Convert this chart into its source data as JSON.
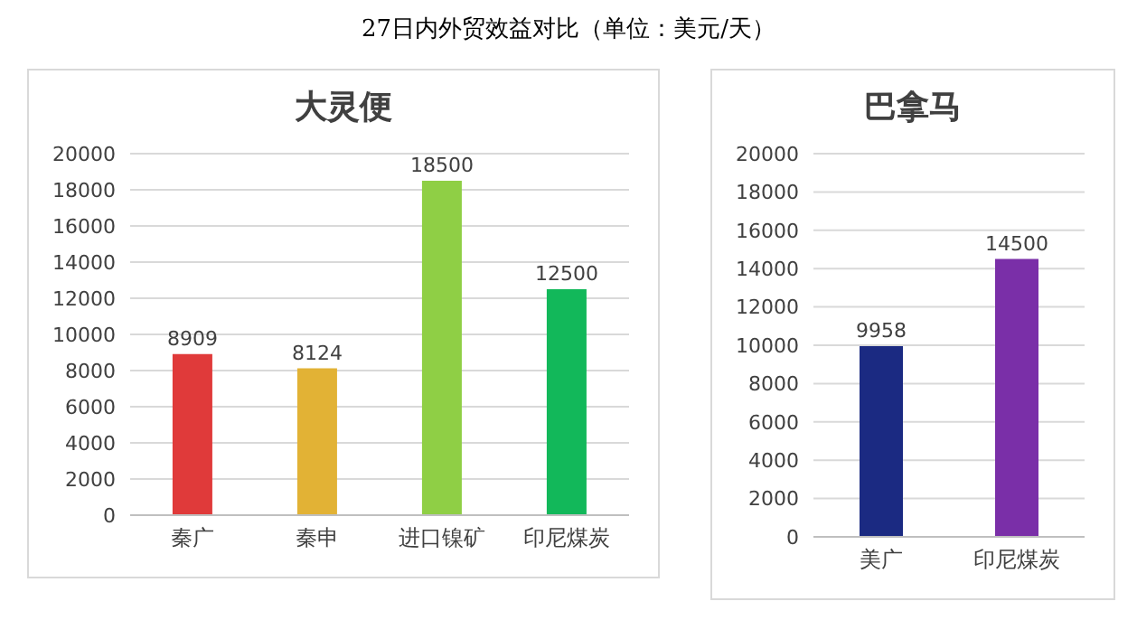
{
  "chart_data": [
    {
      "type": "bar",
      "title": "大灵便",
      "annotations": [
        "27日内外贸效益对比（单位：美元/天）"
      ],
      "categories": [
        "秦广",
        "秦申",
        "进口镍矿",
        "印尼煤炭"
      ],
      "values": [
        8909,
        8124,
        18500,
        12500
      ],
      "colors": [
        "#e03a3a",
        "#e2b235",
        "#8fcf45",
        "#12b85a"
      ],
      "ylim": [
        0,
        20000
      ],
      "yticks": [
        0,
        2000,
        4000,
        6000,
        8000,
        10000,
        12000,
        14000,
        16000,
        18000,
        20000
      ],
      "grid": "y",
      "data_labels": true
    },
    {
      "type": "bar",
      "title": "巴拿马",
      "categories": [
        "美广",
        "印尼煤炭"
      ],
      "values": [
        9958,
        14500
      ],
      "colors": [
        "#1b2a82",
        "#7a2fa8"
      ],
      "ylim": [
        0,
        20000
      ],
      "yticks": [
        0,
        2000,
        4000,
        6000,
        8000,
        10000,
        12000,
        14000,
        16000,
        18000,
        20000
      ],
      "grid": "y",
      "data_labels": true
    }
  ]
}
